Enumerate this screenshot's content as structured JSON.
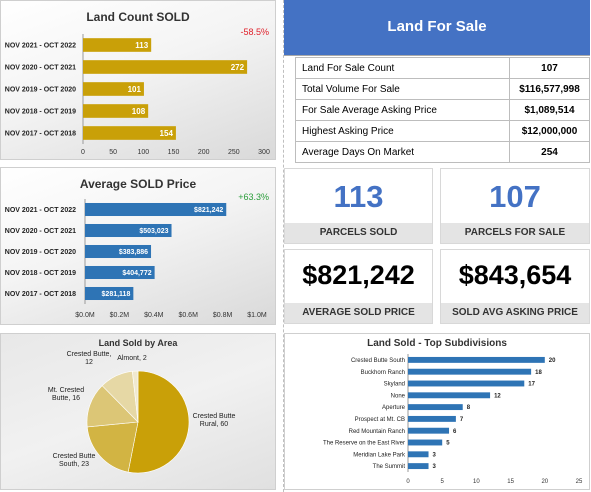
{
  "land_count_sold": {
    "title": "Land Count SOLD",
    "change": "-58.5%",
    "chart_data": {
      "type": "bar",
      "orientation": "horizontal",
      "categories": [
        "NOV 2021 - OCT 2022",
        "NOV 2020 - OCT 2021",
        "NOV 2019 - OCT 2020",
        "NOV 2018 - OCT 2019",
        "NOV 2017 - OCT 2018"
      ],
      "values": [
        113,
        272,
        101,
        108,
        154
      ],
      "data_labels": [
        "113",
        "272",
        "101",
        "108",
        "154"
      ],
      "xlim": [
        0,
        300
      ],
      "x_ticks": [
        "0",
        "50",
        "100",
        "150",
        "200",
        "250",
        "300"
      ],
      "color": "#c9a008"
    }
  },
  "average_sold_price": {
    "title": "Average SOLD Price",
    "change": "+63.3%",
    "chart_data": {
      "type": "bar",
      "orientation": "horizontal",
      "categories": [
        "NOV 2021 - OCT 2022",
        "NOV 2020 - OCT 2021",
        "NOV 2019 - OCT 2020",
        "NOV 2018 - OCT 2019",
        "NOV 2017 - OCT 2018"
      ],
      "values": [
        821242,
        503023,
        383886,
        404772,
        281118
      ],
      "data_labels": [
        "$821,242",
        "$503,023",
        "$383,886",
        "$404,772",
        "$281,118"
      ],
      "xlim": [
        0,
        1000000
      ],
      "x_ticks": [
        "$0.0M",
        "$0.2M",
        "$0.4M",
        "$0.6M",
        "$0.8M",
        "$1.0M"
      ],
      "color": "#2e74b5"
    }
  },
  "land_sold_by_area": {
    "title": "Land Sold by Area",
    "chart_data": {
      "type": "pie",
      "slices": [
        {
          "label": "Crested Butte Rural, 60",
          "value": 60,
          "color": "#c9a008"
        },
        {
          "label": "Crested Butte South, 23",
          "value": 23,
          "color": "#d2b443"
        },
        {
          "label": "Mt. Crested Butte, 16",
          "value": 16,
          "color": "#dcc676"
        },
        {
          "label": "Crested Butte, 12",
          "value": 12,
          "color": "#e6d8a5"
        },
        {
          "label": "Almont, 2",
          "value": 2,
          "color": "#f0e9cf"
        }
      ]
    }
  },
  "land_for_sale": {
    "title": "Land For Sale",
    "header_color": "#4472c4",
    "rows": [
      {
        "label": "Land For Sale Count",
        "value": "107"
      },
      {
        "label": "Total Volume For Sale",
        "value": "$116,577,998"
      },
      {
        "label": "For Sale Average Asking Price",
        "value": "$1,089,514"
      },
      {
        "label": "Highest Asking Price",
        "value": "$12,000,000"
      },
      {
        "label": "Average Days On Market",
        "value": "254"
      }
    ]
  },
  "kpis": [
    {
      "value": "113",
      "label": "PARCELS SOLD",
      "color": "#4472c4"
    },
    {
      "value": "107",
      "label": "PARCELS FOR SALE",
      "color": "#4472c4"
    },
    {
      "value": "$821,242",
      "label": "AVERAGE SOLD PRICE",
      "color": "#000000"
    },
    {
      "value": "$843,654",
      "label": "SOLD AVG ASKING PRICE",
      "color": "#000000"
    }
  ],
  "top_subdivisions": {
    "title": "Land Sold - Top Subdivisions",
    "chart_data": {
      "type": "bar",
      "orientation": "horizontal",
      "categories": [
        "Crested Butte South",
        "Buckhorn Ranch",
        "Skyland",
        "None",
        "Aperture",
        "Prospect at Mt. CB",
        "Red Mountain Ranch",
        "The Reserve on the East River",
        "Meridian Lake Park",
        "The Summit"
      ],
      "values": [
        20,
        18,
        17,
        12,
        8,
        7,
        6,
        5,
        3,
        3
      ],
      "data_labels": [
        "20",
        "18",
        "17",
        "12",
        "8",
        "7",
        "6",
        "5",
        "3",
        "3"
      ],
      "xlim": [
        0,
        25
      ],
      "x_ticks": [
        "0",
        "5",
        "10",
        "15",
        "20",
        "25"
      ],
      "color": "#2e74b5"
    }
  }
}
